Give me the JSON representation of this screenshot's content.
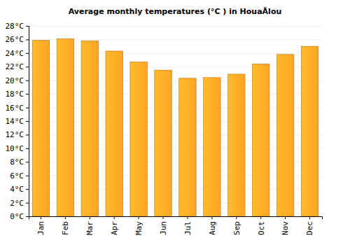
{
  "chart_data": {
    "type": "bar",
    "title": "Average monthly temperatures (°C ) in HouaÃlou",
    "categories": [
      "Jan",
      "Feb",
      "Mar",
      "Apr",
      "May",
      "Jun",
      "Jul",
      "Aug",
      "Sep",
      "Oct",
      "Nov",
      "Dec"
    ],
    "values": [
      25.9,
      26.1,
      25.8,
      24.3,
      22.7,
      21.5,
      20.3,
      20.4,
      20.9,
      22.4,
      23.8,
      25.0
    ],
    "color": "#ffa524",
    "ylim": [
      0,
      28
    ],
    "yticks": [
      {
        "value": 0,
        "label": "0°C"
      },
      {
        "value": 2,
        "label": "2°C"
      },
      {
        "value": 4,
        "label": "4°C"
      },
      {
        "value": 6,
        "label": "6°C"
      },
      {
        "value": 8,
        "label": "8°C"
      },
      {
        "value": 10,
        "label": "10°C"
      },
      {
        "value": 12,
        "label": "12°C"
      },
      {
        "value": 14,
        "label": "14°C"
      },
      {
        "value": 16,
        "label": "16°C"
      },
      {
        "value": 18,
        "label": "18°C"
      },
      {
        "value": 20,
        "label": "20°C"
      },
      {
        "value": 22,
        "label": "22°C"
      },
      {
        "value": 24,
        "label": "24°C"
      },
      {
        "value": 26,
        "label": "26°C"
      },
      {
        "value": 28,
        "label": "28°C"
      }
    ],
    "grid": true
  }
}
